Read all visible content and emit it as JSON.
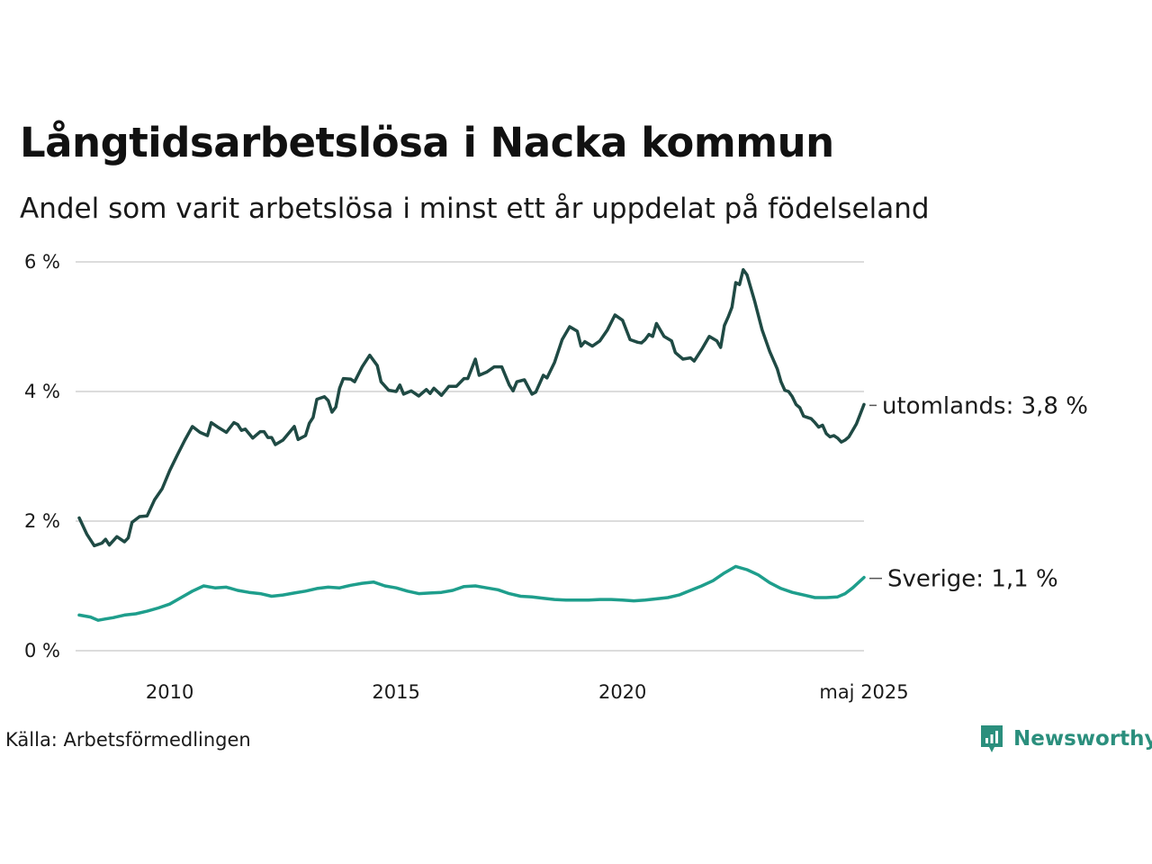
{
  "title": "Långtidsarbetslösa i Nacka kommun",
  "subtitle": "Andel som varit arbetslösa i minst ett år uppdelat på födelseland",
  "source": "Källa: Arbetsförmedlingen",
  "brand": {
    "name": "Newsworthy",
    "icon": "newsworthy-logo-icon",
    "color": "#2b8f7d"
  },
  "chart_data": {
    "type": "line",
    "x_start": "2008-01",
    "x_end": "2025-05",
    "x_ticks": [
      {
        "x": "2010-01",
        "label": "2010"
      },
      {
        "x": "2015-01",
        "label": "2015"
      },
      {
        "x": "2020-01",
        "label": "2020"
      },
      {
        "x": "2025-05",
        "label": "maj 2025"
      }
    ],
    "ylim": [
      0,
      6
    ],
    "y_ticks": [
      {
        "y": 0,
        "label": "0 %"
      },
      {
        "y": 2,
        "label": "2 %"
      },
      {
        "y": 4,
        "label": "4 %"
      },
      {
        "y": 6,
        "label": "6 %"
      }
    ],
    "grid": true,
    "series": [
      {
        "name": "utomlands",
        "end_label": "utomlands: 3,8 %",
        "color": "#1f4a44",
        "points": [
          [
            "2008-01",
            2.05
          ],
          [
            "2008-03",
            1.8
          ],
          [
            "2008-05",
            1.62
          ],
          [
            "2008-07",
            1.66
          ],
          [
            "2008-08",
            1.72
          ],
          [
            "2008-09",
            1.63
          ],
          [
            "2008-11",
            1.76
          ],
          [
            "2009-01",
            1.68
          ],
          [
            "2009-02",
            1.74
          ],
          [
            "2009-03",
            1.98
          ],
          [
            "2009-05",
            2.07
          ],
          [
            "2009-07",
            2.08
          ],
          [
            "2009-09",
            2.33
          ],
          [
            "2009-11",
            2.5
          ],
          [
            "2010-01",
            2.78
          ],
          [
            "2010-03",
            3.02
          ],
          [
            "2010-05",
            3.25
          ],
          [
            "2010-07",
            3.46
          ],
          [
            "2010-09",
            3.37
          ],
          [
            "2010-11",
            3.32
          ],
          [
            "2010-12",
            3.52
          ],
          [
            "2011-02",
            3.44
          ],
          [
            "2011-04",
            3.37
          ],
          [
            "2011-06",
            3.52
          ],
          [
            "2011-07",
            3.49
          ],
          [
            "2011-08",
            3.4
          ],
          [
            "2011-09",
            3.42
          ],
          [
            "2011-11",
            3.28
          ],
          [
            "2012-01",
            3.38
          ],
          [
            "2012-02",
            3.38
          ],
          [
            "2012-03",
            3.29
          ],
          [
            "2012-04",
            3.29
          ],
          [
            "2012-05",
            3.18
          ],
          [
            "2012-07",
            3.25
          ],
          [
            "2012-10",
            3.46
          ],
          [
            "2012-11",
            3.26
          ],
          [
            "2013-01",
            3.32
          ],
          [
            "2013-02",
            3.51
          ],
          [
            "2013-03",
            3.6
          ],
          [
            "2013-04",
            3.88
          ],
          [
            "2013-06",
            3.92
          ],
          [
            "2013-07",
            3.86
          ],
          [
            "2013-08",
            3.68
          ],
          [
            "2013-09",
            3.76
          ],
          [
            "2013-10",
            4.05
          ],
          [
            "2013-11",
            4.2
          ],
          [
            "2014-01",
            4.19
          ],
          [
            "2014-02",
            4.15
          ],
          [
            "2014-04",
            4.38
          ],
          [
            "2014-06",
            4.56
          ],
          [
            "2014-08",
            4.4
          ],
          [
            "2014-09",
            4.15
          ],
          [
            "2014-11",
            4.02
          ],
          [
            "2015-01",
            4.0
          ],
          [
            "2015-02",
            4.1
          ],
          [
            "2015-03",
            3.96
          ],
          [
            "2015-05",
            4.01
          ],
          [
            "2015-07",
            3.93
          ],
          [
            "2015-09",
            4.03
          ],
          [
            "2015-10",
            3.97
          ],
          [
            "2015-11",
            4.05
          ],
          [
            "2016-01",
            3.94
          ],
          [
            "2016-03",
            4.08
          ],
          [
            "2016-05",
            4.08
          ],
          [
            "2016-07",
            4.2
          ],
          [
            "2016-08",
            4.2
          ],
          [
            "2016-10",
            4.5
          ],
          [
            "2016-11",
            4.25
          ],
          [
            "2017-01",
            4.3
          ],
          [
            "2017-03",
            4.38
          ],
          [
            "2017-05",
            4.38
          ],
          [
            "2017-07",
            4.1
          ],
          [
            "2017-08",
            4.01
          ],
          [
            "2017-09",
            4.15
          ],
          [
            "2017-11",
            4.18
          ],
          [
            "2018-01",
            3.96
          ],
          [
            "2018-02",
            3.99
          ],
          [
            "2018-04",
            4.25
          ],
          [
            "2018-05",
            4.21
          ],
          [
            "2018-07",
            4.45
          ],
          [
            "2018-09",
            4.8
          ],
          [
            "2018-11",
            5.0
          ],
          [
            "2019-01",
            4.93
          ],
          [
            "2019-02",
            4.7
          ],
          [
            "2019-03",
            4.77
          ],
          [
            "2019-05",
            4.7
          ],
          [
            "2019-07",
            4.78
          ],
          [
            "2019-09",
            4.95
          ],
          [
            "2019-11",
            5.18
          ],
          [
            "2020-01",
            5.1
          ],
          [
            "2020-03",
            4.8
          ],
          [
            "2020-05",
            4.76
          ],
          [
            "2020-06",
            4.75
          ],
          [
            "2020-07",
            4.8
          ],
          [
            "2020-08",
            4.88
          ],
          [
            "2020-09",
            4.85
          ],
          [
            "2020-10",
            5.05
          ],
          [
            "2020-12",
            4.85
          ],
          [
            "2021-02",
            4.78
          ],
          [
            "2021-03",
            4.6
          ],
          [
            "2021-05",
            4.5
          ],
          [
            "2021-07",
            4.52
          ],
          [
            "2021-08",
            4.47
          ],
          [
            "2021-10",
            4.65
          ],
          [
            "2021-12",
            4.85
          ],
          [
            "2022-02",
            4.78
          ],
          [
            "2022-03",
            4.68
          ],
          [
            "2022-04",
            5.02
          ],
          [
            "2022-05",
            5.15
          ],
          [
            "2022-06",
            5.3
          ],
          [
            "2022-07",
            5.68
          ],
          [
            "2022-08",
            5.65
          ],
          [
            "2022-09",
            5.88
          ],
          [
            "2022-10",
            5.8
          ],
          [
            "2022-12",
            5.4
          ],
          [
            "2023-02",
            4.95
          ],
          [
            "2023-04",
            4.62
          ],
          [
            "2023-06",
            4.35
          ],
          [
            "2023-07",
            4.15
          ],
          [
            "2023-08",
            4.02
          ],
          [
            "2023-09",
            4.0
          ],
          [
            "2023-10",
            3.92
          ],
          [
            "2023-11",
            3.8
          ],
          [
            "2023-12",
            3.75
          ],
          [
            "2024-01",
            3.62
          ],
          [
            "2024-02",
            3.6
          ],
          [
            "2024-03",
            3.58
          ],
          [
            "2024-04",
            3.52
          ],
          [
            "2024-05",
            3.45
          ],
          [
            "2024-06",
            3.48
          ],
          [
            "2024-07",
            3.35
          ],
          [
            "2024-08",
            3.3
          ],
          [
            "2024-09",
            3.32
          ],
          [
            "2024-10",
            3.28
          ],
          [
            "2024-11",
            3.22
          ],
          [
            "2024-12",
            3.25
          ],
          [
            "2025-01",
            3.3
          ],
          [
            "2025-02",
            3.4
          ],
          [
            "2025-03",
            3.5
          ],
          [
            "2025-04",
            3.65
          ],
          [
            "2025-05",
            3.8
          ]
        ]
      },
      {
        "name": "Sverige",
        "end_label": "Sverige: 1,1 %",
        "color": "#1e9e8c",
        "points": [
          [
            "2008-01",
            0.55
          ],
          [
            "2008-04",
            0.52
          ],
          [
            "2008-06",
            0.47
          ],
          [
            "2008-08",
            0.49
          ],
          [
            "2008-10",
            0.51
          ],
          [
            "2009-01",
            0.55
          ],
          [
            "2009-04",
            0.57
          ],
          [
            "2009-07",
            0.61
          ],
          [
            "2009-10",
            0.66
          ],
          [
            "2010-01",
            0.72
          ],
          [
            "2010-04",
            0.82
          ],
          [
            "2010-07",
            0.92
          ],
          [
            "2010-10",
            1.0
          ],
          [
            "2011-01",
            0.97
          ],
          [
            "2011-04",
            0.98
          ],
          [
            "2011-07",
            0.93
          ],
          [
            "2011-10",
            0.9
          ],
          [
            "2012-01",
            0.88
          ],
          [
            "2012-04",
            0.84
          ],
          [
            "2012-07",
            0.86
          ],
          [
            "2012-10",
            0.89
          ],
          [
            "2013-01",
            0.92
          ],
          [
            "2013-04",
            0.96
          ],
          [
            "2013-07",
            0.98
          ],
          [
            "2013-10",
            0.97
          ],
          [
            "2014-01",
            1.01
          ],
          [
            "2014-04",
            1.04
          ],
          [
            "2014-07",
            1.06
          ],
          [
            "2014-10",
            1.0
          ],
          [
            "2015-01",
            0.97
          ],
          [
            "2015-04",
            0.92
          ],
          [
            "2015-07",
            0.88
          ],
          [
            "2015-10",
            0.89
          ],
          [
            "2016-01",
            0.9
          ],
          [
            "2016-04",
            0.93
          ],
          [
            "2016-07",
            0.99
          ],
          [
            "2016-10",
            1.0
          ],
          [
            "2017-01",
            0.97
          ],
          [
            "2017-04",
            0.94
          ],
          [
            "2017-07",
            0.88
          ],
          [
            "2017-10",
            0.84
          ],
          [
            "2018-01",
            0.83
          ],
          [
            "2018-04",
            0.81
          ],
          [
            "2018-07",
            0.79
          ],
          [
            "2018-10",
            0.78
          ],
          [
            "2019-01",
            0.78
          ],
          [
            "2019-04",
            0.78
          ],
          [
            "2019-07",
            0.79
          ],
          [
            "2019-10",
            0.79
          ],
          [
            "2020-01",
            0.78
          ],
          [
            "2020-04",
            0.77
          ],
          [
            "2020-07",
            0.78
          ],
          [
            "2020-10",
            0.8
          ],
          [
            "2021-01",
            0.82
          ],
          [
            "2021-04",
            0.86
          ],
          [
            "2021-07",
            0.93
          ],
          [
            "2021-10",
            1.0
          ],
          [
            "2022-01",
            1.08
          ],
          [
            "2022-04",
            1.2
          ],
          [
            "2022-07",
            1.3
          ],
          [
            "2022-10",
            1.25
          ],
          [
            "2023-01",
            1.17
          ],
          [
            "2023-04",
            1.05
          ],
          [
            "2023-07",
            0.96
          ],
          [
            "2023-10",
            0.9
          ],
          [
            "2024-01",
            0.86
          ],
          [
            "2024-04",
            0.82
          ],
          [
            "2024-07",
            0.82
          ],
          [
            "2024-10",
            0.83
          ],
          [
            "2024-12",
            0.88
          ],
          [
            "2025-02",
            0.97
          ],
          [
            "2025-05",
            1.13
          ]
        ]
      }
    ]
  }
}
